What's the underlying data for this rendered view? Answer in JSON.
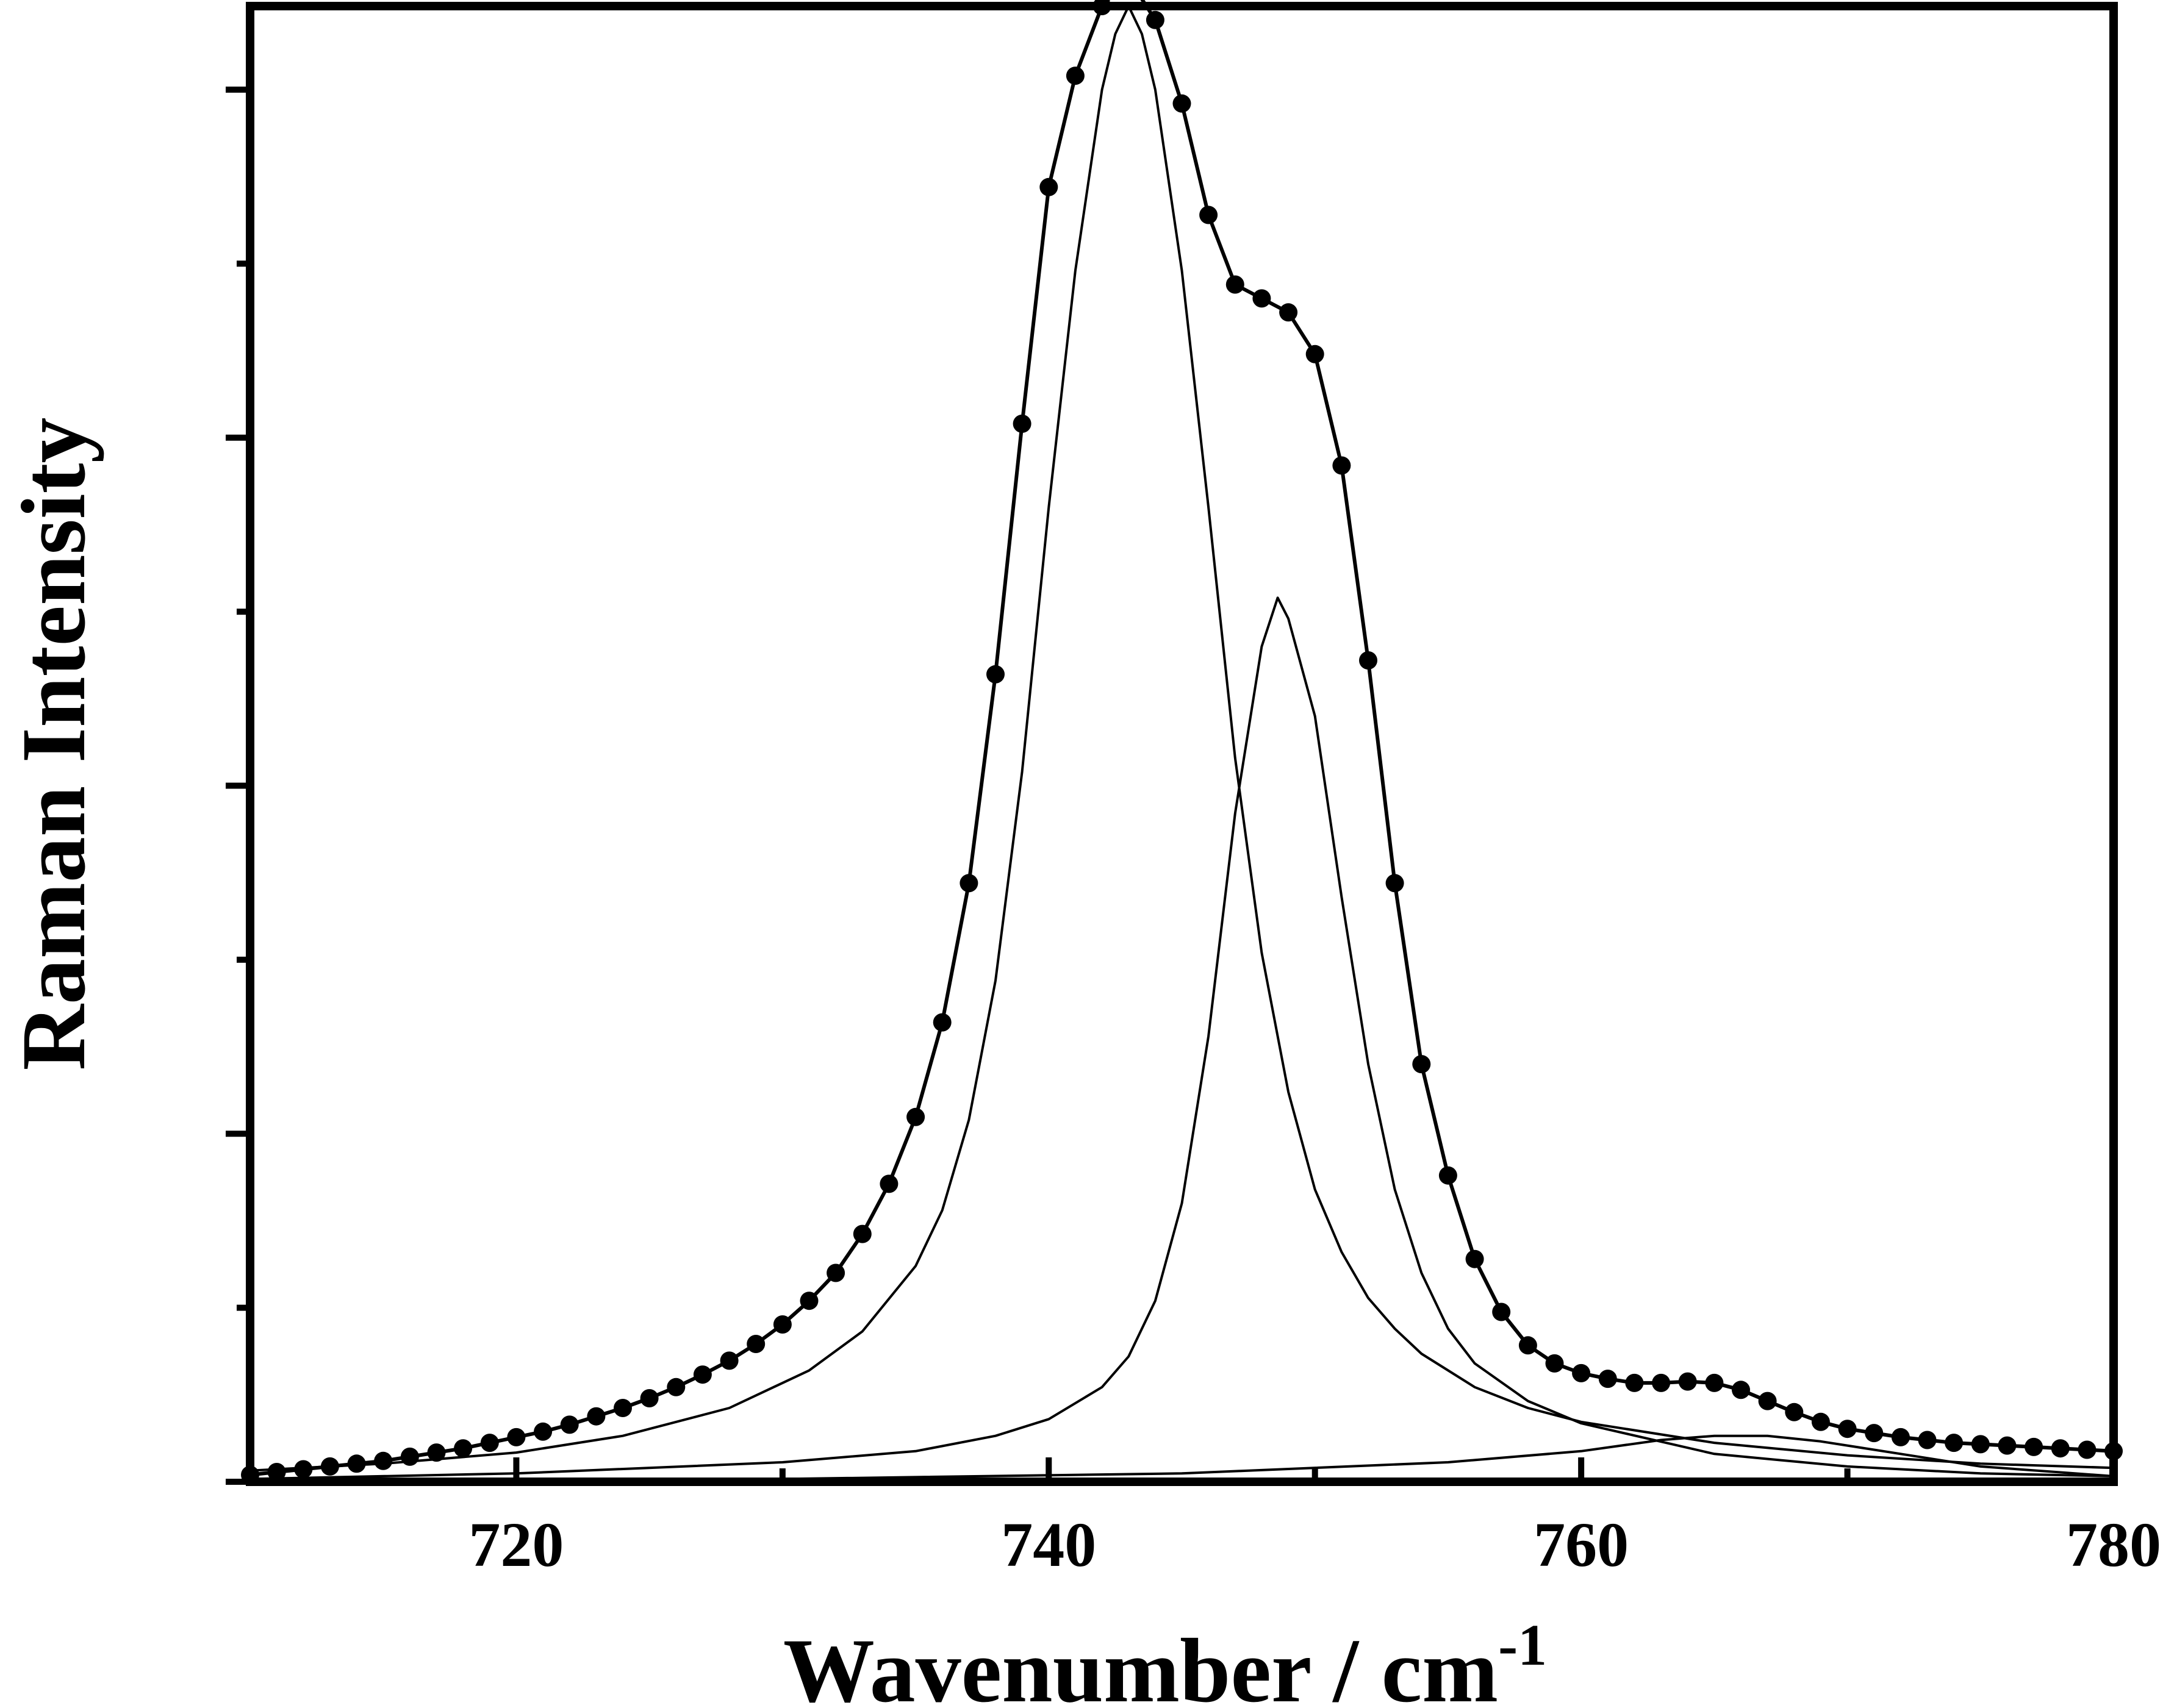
{
  "chart_data": {
    "type": "line",
    "title": "",
    "xlabel": "Wavenumber / cm",
    "xlabel_superscript": "-1",
    "ylabel": "Raman Intensity",
    "xlim": [
      710,
      780
    ],
    "ylim": [
      0,
      1.06
    ],
    "x_ticks": [
      720,
      740,
      760,
      780
    ],
    "x_tick_labels": [
      "720",
      "740",
      "760",
      "780"
    ],
    "y_ticks_count": 5,
    "y_tick_labels_shown": false,
    "grid": false,
    "legend": "none",
    "series": [
      {
        "style": "markers+line",
        "x": [
          710,
          711,
          712,
          713,
          714,
          715,
          716,
          717,
          718,
          719,
          720,
          721,
          722,
          723,
          724,
          725,
          726,
          727,
          728,
          729,
          730,
          731,
          732,
          733,
          734,
          735,
          736,
          737,
          738,
          739,
          740,
          741,
          742,
          743,
          744,
          745,
          746,
          747,
          748,
          749,
          750,
          751,
          752,
          753,
          754,
          755,
          756,
          757,
          758,
          759,
          760,
          761,
          762,
          763,
          764,
          765,
          766,
          767,
          768,
          769,
          770,
          771,
          772,
          773,
          774,
          775,
          776,
          777,
          778,
          779,
          780
        ],
        "y": [
          0.005,
          0.007,
          0.009,
          0.011,
          0.013,
          0.015,
          0.018,
          0.021,
          0.024,
          0.028,
          0.032,
          0.036,
          0.041,
          0.047,
          0.053,
          0.06,
          0.068,
          0.077,
          0.087,
          0.099,
          0.113,
          0.13,
          0.15,
          0.178,
          0.214,
          0.262,
          0.33,
          0.43,
          0.58,
          0.76,
          0.93,
          1.01,
          1.06,
          1.08,
          1.05,
          0.99,
          0.91,
          0.86,
          0.85,
          0.84,
          0.81,
          0.73,
          0.59,
          0.43,
          0.3,
          0.22,
          0.16,
          0.122,
          0.098,
          0.085,
          0.078,
          0.074,
          0.071,
          0.071,
          0.072,
          0.071,
          0.066,
          0.058,
          0.05,
          0.043,
          0.038,
          0.035,
          0.032,
          0.03,
          0.028,
          0.027,
          0.026,
          0.025,
          0.024,
          0.023,
          0.022
        ]
      },
      {
        "style": "line",
        "x": [
          710,
          715,
          720,
          724,
          728,
          731,
          733,
          735,
          736,
          737,
          738,
          739,
          740,
          741,
          742,
          742.5,
          743,
          743.5,
          744,
          745,
          746,
          747,
          748,
          749,
          750,
          751,
          752,
          753,
          754,
          756,
          758,
          760,
          765,
          770,
          775,
          780
        ],
        "y": [
          0.008,
          0.013,
          0.021,
          0.033,
          0.053,
          0.08,
          0.108,
          0.155,
          0.195,
          0.26,
          0.36,
          0.51,
          0.7,
          0.87,
          1.0,
          1.04,
          1.06,
          1.04,
          1.0,
          0.87,
          0.7,
          0.52,
          0.38,
          0.28,
          0.21,
          0.165,
          0.132,
          0.11,
          0.092,
          0.068,
          0.053,
          0.043,
          0.028,
          0.019,
          0.013,
          0.01
        ]
      },
      {
        "style": "line",
        "x": [
          710,
          720,
          730,
          735,
          738,
          740,
          742,
          743,
          744,
          745,
          746,
          747,
          748,
          748.6,
          749,
          750,
          751,
          752,
          753,
          754,
          755,
          756,
          758,
          760,
          765,
          770,
          775,
          780
        ],
        "y": [
          0.002,
          0.006,
          0.014,
          0.022,
          0.033,
          0.045,
          0.068,
          0.09,
          0.13,
          0.2,
          0.32,
          0.48,
          0.6,
          0.635,
          0.62,
          0.55,
          0.42,
          0.3,
          0.21,
          0.15,
          0.11,
          0.085,
          0.058,
          0.042,
          0.02,
          0.011,
          0.006,
          0.004
        ]
      },
      {
        "style": "line",
        "x": [
          710,
          730,
          745,
          755,
          760,
          763,
          765,
          767,
          769,
          772,
          775,
          780
        ],
        "y": [
          0.0,
          0.002,
          0.006,
          0.014,
          0.022,
          0.03,
          0.033,
          0.033,
          0.029,
          0.02,
          0.011,
          0.004
        ]
      }
    ]
  }
}
